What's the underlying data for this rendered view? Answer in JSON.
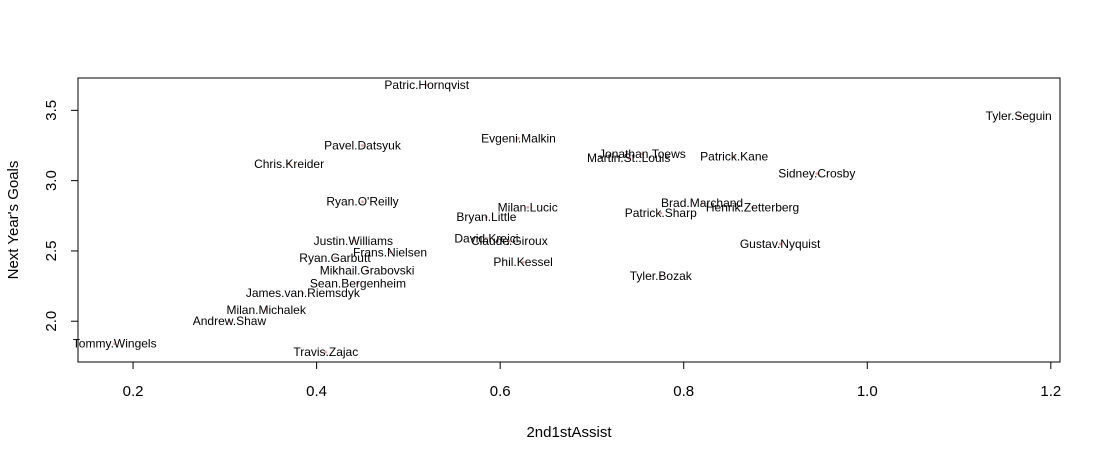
{
  "chart_data": {
    "type": "scatter",
    "title": "",
    "xlabel": "2nd1stAssist",
    "ylabel": "Next Year's Goals",
    "xlim": [
      0.14,
      1.21
    ],
    "ylim": [
      1.71,
      3.73
    ],
    "xticks": [
      0.2,
      0.4,
      0.6,
      0.8,
      1.0,
      1.2
    ],
    "xtick_labels": [
      "0.2",
      "0.4",
      "0.6",
      "0.8",
      "1.0",
      "1.2"
    ],
    "yticks": [
      2.0,
      2.5,
      3.0,
      3.5
    ],
    "ytick_labels": [
      "2.0",
      "2.5",
      "3.0",
      "3.5"
    ],
    "grid": false,
    "legend": "none",
    "point_color": "#e8a0a0",
    "points": [
      {
        "label": "Patric.Hornqvist",
        "x": 0.52,
        "y": 3.68
      },
      {
        "label": "Tyler.Seguin",
        "x": 1.165,
        "y": 3.46
      },
      {
        "label": "Evgeni.Malkin",
        "x": 0.62,
        "y": 3.3
      },
      {
        "label": "Pavel.Datsyuk",
        "x": 0.45,
        "y": 3.25
      },
      {
        "label": "Jonathan.Toews",
        "x": 0.755,
        "y": 3.19
      },
      {
        "label": "Patrick.Kane",
        "x": 0.855,
        "y": 3.17
      },
      {
        "label": "Martin.St..Louis",
        "x": 0.74,
        "y": 3.16
      },
      {
        "label": "Chris.Kreider",
        "x": 0.37,
        "y": 3.12
      },
      {
        "label": "Sidney.Crosby",
        "x": 0.945,
        "y": 3.05
      },
      {
        "label": "Ryan.O'Reilly",
        "x": 0.45,
        "y": 2.85
      },
      {
        "label": "Brad.Marchand",
        "x": 0.82,
        "y": 2.84
      },
      {
        "label": "Milan.Lucic",
        "x": 0.63,
        "y": 2.81
      },
      {
        "label": "Henrik.Zetterberg",
        "x": 0.875,
        "y": 2.81
      },
      {
        "label": "Patrick.Sharp",
        "x": 0.775,
        "y": 2.77
      },
      {
        "label": "Bryan.Little",
        "x": 0.585,
        "y": 2.74
      },
      {
        "label": "David.Krejci",
        "x": 0.585,
        "y": 2.59
      },
      {
        "label": "Justin.Williams",
        "x": 0.44,
        "y": 2.57
      },
      {
        "label": "Claude.Giroux",
        "x": 0.61,
        "y": 2.57
      },
      {
        "label": "Gustav.Nyquist",
        "x": 0.905,
        "y": 2.55
      },
      {
        "label": "Frans.Nielsen",
        "x": 0.48,
        "y": 2.49
      },
      {
        "label": "Ryan.Garbutt",
        "x": 0.42,
        "y": 2.45
      },
      {
        "label": "Phil.Kessel",
        "x": 0.625,
        "y": 2.42
      },
      {
        "label": "Mikhail.Grabovski",
        "x": 0.455,
        "y": 2.36
      },
      {
        "label": "Tyler.Bozak",
        "x": 0.775,
        "y": 2.32
      },
      {
        "label": "Sean.Bergenheim",
        "x": 0.445,
        "y": 2.27
      },
      {
        "label": "James.van.Riemsdyk",
        "x": 0.385,
        "y": 2.2
      },
      {
        "label": "Milan.Michalek",
        "x": 0.345,
        "y": 2.08
      },
      {
        "label": "Andrew.Shaw",
        "x": 0.305,
        "y": 2.0
      },
      {
        "label": "Tommy.Wingels",
        "x": 0.18,
        "y": 1.84
      },
      {
        "label": "Travis.Zajac",
        "x": 0.41,
        "y": 1.78
      }
    ]
  }
}
